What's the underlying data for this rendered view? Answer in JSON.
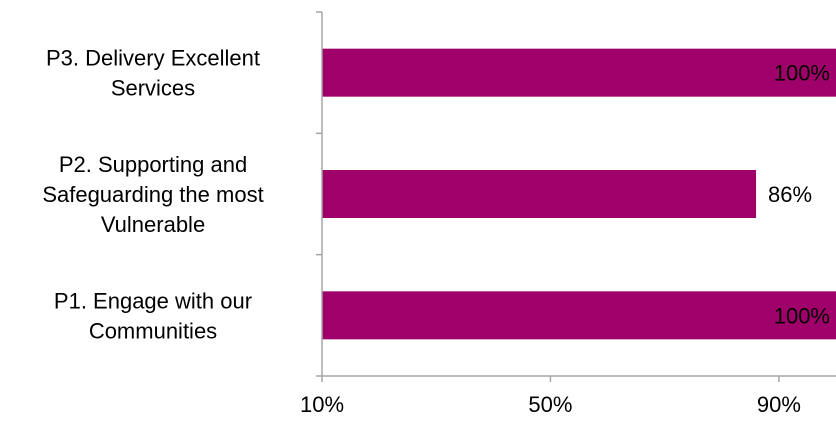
{
  "chart_data": {
    "type": "bar",
    "orientation": "horizontal",
    "categories": [
      [
        "P3. Delivery Excellent",
        "Services"
      ],
      [
        "P2. Supporting and",
        "Safeguarding the most",
        "Vulnerable"
      ],
      [
        "P1. Engage with our",
        "Communities"
      ]
    ],
    "values": [
      100,
      86,
      100
    ],
    "data_labels": [
      "100%",
      "86%",
      "100%"
    ],
    "xlim": [
      10,
      100
    ],
    "xticks": [
      10,
      50,
      90
    ],
    "xtick_labels": [
      "10%",
      "50%",
      "90%"
    ],
    "title": "",
    "xlabel": "",
    "ylabel": "",
    "grid": false,
    "legend": "none",
    "colors": {
      "bar": "#a0006a",
      "axis": "#a6a6a6",
      "text": "#000000"
    }
  }
}
